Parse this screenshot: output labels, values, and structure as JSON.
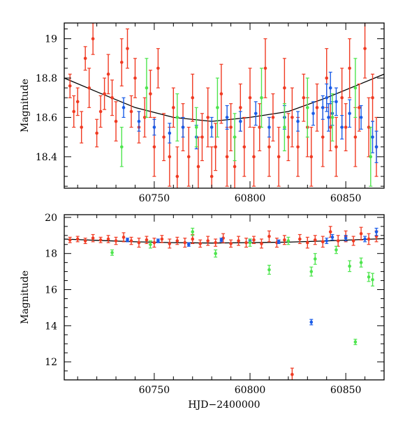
{
  "colors": {
    "red": "#f03a22",
    "blue": "#1a5ce8",
    "green": "#4ee54e",
    "model": "#000000"
  },
  "chart_data": [
    {
      "type": "scatter",
      "title": "",
      "xlabel": "",
      "ylabel": "Magnitude",
      "xlim": [
        60703,
        60870
      ],
      "ylim": [
        19.08,
        18.24
      ],
      "y_inverted": true,
      "xticks": [
        60750,
        60800,
        60850
      ],
      "xtick_labels": [
        "60750",
        "60800",
        "60850"
      ],
      "yticks": [
        18.4,
        18.6,
        18.8,
        19
      ],
      "ytick_labels": [
        "18.4",
        "18.6",
        "18.8",
        "19"
      ],
      "grid": false,
      "series": [
        {
          "color_key": "red",
          "points": [
            [
              60706,
              18.76,
              0.06
            ],
            [
              60708,
              18.63,
              0.08
            ],
            [
              60710,
              18.68,
              0.07
            ],
            [
              60712,
              18.55,
              0.08
            ],
            [
              60714,
              18.9,
              0.06
            ],
            [
              60716,
              18.75,
              0.1
            ],
            [
              60718,
              19.0,
              0.08
            ],
            [
              60720,
              18.52,
              0.07
            ],
            [
              60722,
              18.63,
              0.08
            ],
            [
              60724,
              18.72,
              0.08
            ],
            [
              60726,
              18.82,
              0.1
            ],
            [
              60728,
              18.7,
              0.09
            ],
            [
              60730,
              18.58,
              0.1
            ],
            [
              60733,
              18.88,
              0.12
            ],
            [
              60736,
              18.95,
              0.1
            ],
            [
              60738,
              18.63,
              0.08
            ],
            [
              60740,
              18.8,
              0.1
            ],
            [
              60742,
              18.55,
              0.08
            ],
            [
              60745,
              18.6,
              0.1
            ],
            [
              60748,
              18.72,
              0.12
            ],
            [
              60750,
              18.45,
              0.15
            ],
            [
              60752,
              18.85,
              0.1
            ],
            [
              60755,
              18.5,
              0.12
            ],
            [
              60758,
              18.4,
              0.15
            ],
            [
              60760,
              18.65,
              0.1
            ],
            [
              60762,
              18.3,
              0.15
            ],
            [
              60765,
              18.55,
              0.12
            ],
            [
              60768,
              18.4,
              0.15
            ],
            [
              60770,
              18.7,
              0.12
            ],
            [
              60773,
              18.35,
              0.15
            ],
            [
              60775,
              18.5,
              0.12
            ],
            [
              60778,
              18.6,
              0.15
            ],
            [
              60780,
              18.3,
              0.15
            ],
            [
              60782,
              18.45,
              0.12
            ],
            [
              60785,
              18.72,
              0.15
            ],
            [
              60788,
              18.4,
              0.15
            ],
            [
              60790,
              18.55,
              0.12
            ],
            [
              60792,
              18.35,
              0.15
            ],
            [
              60795,
              18.65,
              0.12
            ],
            [
              60797,
              18.45,
              0.15
            ],
            [
              60800,
              18.7,
              0.15
            ],
            [
              60802,
              18.4,
              0.15
            ],
            [
              60805,
              18.55,
              0.12
            ],
            [
              60808,
              18.85,
              0.15
            ],
            [
              60810,
              18.45,
              0.15
            ],
            [
              60812,
              18.6,
              0.12
            ],
            [
              60815,
              18.4,
              0.15
            ],
            [
              60818,
              18.75,
              0.15
            ],
            [
              60820,
              18.5,
              0.12
            ],
            [
              60822,
              18.6,
              0.15
            ],
            [
              60825,
              18.45,
              0.15
            ],
            [
              60828,
              18.7,
              0.12
            ],
            [
              60830,
              18.55,
              0.15
            ],
            [
              60832,
              18.4,
              0.15
            ],
            [
              60835,
              18.65,
              0.12
            ],
            [
              60838,
              18.5,
              0.15
            ],
            [
              60840,
              18.8,
              0.15
            ],
            [
              60842,
              18.55,
              0.12
            ],
            [
              60845,
              18.45,
              0.15
            ],
            [
              60848,
              18.7,
              0.15
            ],
            [
              60850,
              18.55,
              0.12
            ],
            [
              60852,
              18.85,
              0.15
            ],
            [
              60855,
              18.5,
              0.15
            ],
            [
              60857,
              18.65,
              0.12
            ],
            [
              60860,
              18.95,
              0.15
            ],
            [
              60862,
              18.55,
              0.15
            ],
            [
              60864,
              18.7,
              0.12
            ],
            [
              60866,
              18.45,
              0.15
            ]
          ]
        },
        {
          "color_key": "blue",
          "points": [
            [
              60734,
              18.65,
              0.05
            ],
            [
              60742,
              18.58,
              0.05
            ],
            [
              60750,
              18.55,
              0.04
            ],
            [
              60758,
              18.52,
              0.05
            ],
            [
              60765,
              18.55,
              0.05
            ],
            [
              60772,
              18.5,
              0.06
            ],
            [
              60780,
              18.55,
              0.05
            ],
            [
              60788,
              18.6,
              0.06
            ],
            [
              60795,
              18.58,
              0.05
            ],
            [
              60803,
              18.62,
              0.06
            ],
            [
              60810,
              18.55,
              0.05
            ],
            [
              60818,
              18.6,
              0.06
            ],
            [
              60825,
              18.58,
              0.05
            ],
            [
              60833,
              18.62,
              0.06
            ],
            [
              60838,
              18.65,
              0.06
            ],
            [
              60840,
              18.7,
              0.07
            ],
            [
              60841,
              18.6,
              0.07
            ],
            [
              60842,
              18.75,
              0.08
            ],
            [
              60843,
              18.62,
              0.06
            ],
            [
              60845,
              18.68,
              0.07
            ],
            [
              60848,
              18.55,
              0.06
            ],
            [
              60852,
              18.62,
              0.07
            ],
            [
              60858,
              18.6,
              0.06
            ],
            [
              60864,
              18.5,
              0.08
            ],
            [
              60866,
              18.45,
              0.08
            ]
          ]
        },
        {
          "color_key": "green",
          "points": [
            [
              60733,
              18.45,
              0.1
            ],
            [
              60746,
              18.75,
              0.15
            ],
            [
              60762,
              18.6,
              0.12
            ],
            [
              60772,
              18.55,
              0.1
            ],
            [
              60783,
              18.65,
              0.15
            ],
            [
              60792,
              18.5,
              0.12
            ],
            [
              60806,
              18.7,
              0.15
            ],
            [
              60818,
              18.55,
              0.12
            ],
            [
              60830,
              18.65,
              0.15
            ],
            [
              60843,
              18.6,
              0.12
            ],
            [
              60855,
              18.75,
              0.15
            ],
            [
              60863,
              18.4,
              0.15
            ]
          ]
        }
      ],
      "model": {
        "x": [
          60703,
          60720,
          60740,
          60760,
          60780,
          60800,
          60820,
          60840,
          60855,
          60870
        ],
        "y": [
          18.8,
          18.73,
          18.65,
          18.6,
          18.58,
          18.6,
          18.63,
          18.7,
          18.76,
          18.82
        ]
      }
    },
    {
      "type": "scatter",
      "title": "",
      "xlabel": "HJD−2400000",
      "ylabel": "Magnitude",
      "xlim": [
        60703,
        60870
      ],
      "ylim": [
        20.15,
        11.0
      ],
      "y_inverted": true,
      "xticks": [
        60750,
        60800,
        60850
      ],
      "xtick_labels": [
        "60750",
        "60800",
        "60850"
      ],
      "yticks": [
        12,
        14,
        16,
        18,
        20
      ],
      "ytick_labels": [
        "12",
        "14",
        "16",
        "18",
        "20"
      ],
      "grid": false,
      "series": [
        {
          "color_key": "red",
          "points": [
            [
              60706,
              18.75,
              0.15
            ],
            [
              60710,
              18.8,
              0.15
            ],
            [
              60714,
              18.7,
              0.15
            ],
            [
              60718,
              18.85,
              0.2
            ],
            [
              60722,
              18.75,
              0.15
            ],
            [
              60726,
              18.8,
              0.2
            ],
            [
              60730,
              18.7,
              0.2
            ],
            [
              60734,
              18.9,
              0.25
            ],
            [
              60738,
              18.7,
              0.2
            ],
            [
              60742,
              18.6,
              0.25
            ],
            [
              60746,
              18.75,
              0.2
            ],
            [
              60750,
              18.6,
              0.25
            ],
            [
              60754,
              18.8,
              0.2
            ],
            [
              60758,
              18.55,
              0.25
            ],
            [
              60762,
              18.7,
              0.2
            ],
            [
              60766,
              18.6,
              0.25
            ],
            [
              60770,
              18.8,
              0.25
            ],
            [
              60774,
              18.55,
              0.2
            ],
            [
              60778,
              18.7,
              0.25
            ],
            [
              60782,
              18.6,
              0.2
            ],
            [
              60786,
              18.85,
              0.25
            ],
            [
              60790,
              18.55,
              0.2
            ],
            [
              60794,
              18.7,
              0.25
            ],
            [
              60798,
              18.6,
              0.25
            ],
            [
              60802,
              18.75,
              0.2
            ],
            [
              60806,
              18.55,
              0.25
            ],
            [
              60810,
              18.95,
              0.3
            ],
            [
              60814,
              18.6,
              0.25
            ],
            [
              60818,
              18.75,
              0.25
            ],
            [
              60822,
              11.3,
              0.35
            ],
            [
              60826,
              18.8,
              0.25
            ],
            [
              60830,
              18.6,
              0.3
            ],
            [
              60834,
              18.75,
              0.25
            ],
            [
              60838,
              18.65,
              0.3
            ],
            [
              60842,
              19.2,
              0.3
            ],
            [
              60846,
              18.7,
              0.3
            ],
            [
              60850,
              18.95,
              0.3
            ],
            [
              60854,
              18.7,
              0.25
            ],
            [
              60858,
              19.1,
              0.35
            ],
            [
              60862,
              18.8,
              0.3
            ],
            [
              60866,
              18.95,
              0.3
            ]
          ]
        },
        {
          "color_key": "blue",
          "points": [
            [
              60736,
              18.75,
              0.1
            ],
            [
              60752,
              18.7,
              0.1
            ],
            [
              60768,
              18.5,
              0.1
            ],
            [
              60785,
              18.75,
              0.1
            ],
            [
              60800,
              18.7,
              0.1
            ],
            [
              60815,
              18.65,
              0.1
            ],
            [
              60832,
              14.2,
              0.15
            ],
            [
              60840,
              18.7,
              0.15
            ],
            [
              60843,
              18.9,
              0.15
            ],
            [
              60850,
              18.85,
              0.15
            ],
            [
              60860,
              18.8,
              0.15
            ],
            [
              60866,
              19.2,
              0.2
            ]
          ]
        },
        {
          "color_key": "green",
          "points": [
            [
              60728,
              18.05,
              0.15
            ],
            [
              60748,
              18.5,
              0.2
            ],
            [
              60770,
              19.2,
              0.2
            ],
            [
              60782,
              18.0,
              0.2
            ],
            [
              60800,
              18.6,
              0.2
            ],
            [
              60810,
              17.1,
              0.25
            ],
            [
              60820,
              18.7,
              0.2
            ],
            [
              60832,
              17.0,
              0.25
            ],
            [
              60834,
              17.7,
              0.3
            ],
            [
              60845,
              18.2,
              0.2
            ],
            [
              60852,
              17.3,
              0.3
            ],
            [
              60855,
              13.1,
              0.15
            ],
            [
              60858,
              17.5,
              0.25
            ],
            [
              60862,
              16.7,
              0.25
            ],
            [
              60864,
              16.55,
              0.35
            ]
          ]
        }
      ],
      "model": {
        "x": [
          60703,
          60720,
          60740,
          60760,
          60780,
          60800,
          60820,
          60840,
          60855,
          60870
        ],
        "y": [
          18.8,
          18.73,
          18.65,
          18.6,
          18.58,
          18.6,
          18.63,
          18.7,
          18.76,
          18.82
        ]
      }
    }
  ]
}
